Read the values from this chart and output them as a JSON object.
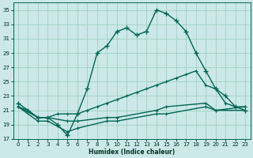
{
  "xlabel": "Humidex (Indice chaleur)",
  "bg_color": "#cce8e8",
  "grid_color": "#99ccbb",
  "line_color": "#006655",
  "xlim": [
    -0.5,
    23.5
  ],
  "ylim": [
    17,
    36
  ],
  "yticks": [
    17,
    19,
    21,
    23,
    25,
    27,
    29,
    31,
    33,
    35
  ],
  "xticks": [
    0,
    1,
    2,
    3,
    4,
    5,
    6,
    7,
    8,
    9,
    10,
    11,
    12,
    13,
    14,
    15,
    16,
    17,
    18,
    19,
    20,
    21,
    22,
    23
  ],
  "series1_x": [
    0,
    1,
    2,
    3,
    4,
    5,
    6,
    7,
    8,
    9,
    10,
    11,
    12,
    13,
    14,
    15,
    16,
    17,
    18,
    19,
    20,
    21,
    22,
    23
  ],
  "series1_y": [
    22.0,
    21.0,
    20.0,
    20.0,
    19.0,
    17.5,
    20.5,
    24.0,
    29.0,
    30.0,
    32.0,
    32.5,
    31.5,
    32.0,
    35.0,
    34.5,
    33.5,
    32.0,
    29.0,
    26.5,
    24.0,
    23.0,
    21.5,
    21.0
  ],
  "series2_x": [
    0,
    1,
    2,
    3,
    4,
    5,
    6,
    7,
    8,
    9,
    10,
    11,
    12,
    13,
    14,
    15,
    16,
    17,
    18,
    19,
    20,
    21,
    22,
    23
  ],
  "series2_y": [
    21.5,
    21.0,
    20.0,
    20.0,
    20.5,
    20.5,
    20.5,
    21.0,
    21.5,
    22.0,
    22.5,
    23.0,
    23.5,
    24.0,
    24.5,
    25.0,
    25.5,
    26.0,
    26.5,
    24.5,
    24.0,
    22.0,
    21.5,
    21.5
  ],
  "series3_x": [
    0,
    2,
    3,
    5,
    6,
    9,
    10,
    14,
    15,
    19,
    20,
    23
  ],
  "series3_y": [
    21.5,
    20.0,
    20.0,
    19.5,
    19.5,
    20.0,
    20.0,
    21.0,
    21.5,
    22.0,
    21.0,
    21.5
  ],
  "series4_x": [
    0,
    2,
    3,
    5,
    6,
    9,
    10,
    14,
    15,
    19,
    20,
    23
  ],
  "series4_y": [
    21.5,
    19.5,
    19.5,
    18.0,
    18.5,
    19.5,
    19.5,
    20.5,
    20.5,
    21.5,
    21.0,
    21.0
  ],
  "marker_size": 3,
  "line_width": 1.0
}
